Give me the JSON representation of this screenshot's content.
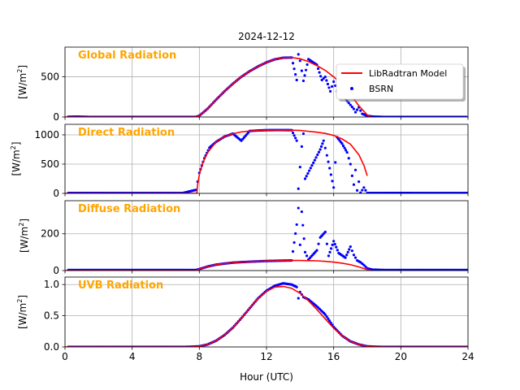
{
  "chart_data": {
    "type": "scatter",
    "title": "2024-12-12",
    "xlabel": "Hour (UTC)",
    "xlim": [
      0,
      24
    ],
    "xticks": [
      "0",
      "4",
      "8",
      "12",
      "16",
      "20",
      "24"
    ],
    "xtick_values": [
      0,
      4,
      8,
      12,
      16,
      20,
      24
    ],
    "grid": true,
    "legend": {
      "position": "top-right of first panel",
      "entries": [
        {
          "label": "LibRadtran Model",
          "color": "#ff0000",
          "marker": "line"
        },
        {
          "label": "BSRN",
          "color": "#0000ff",
          "marker": "dot"
        }
      ]
    },
    "series_colors": {
      "model": "#ff0000",
      "bsrn": "#0000ff",
      "panel_label": "#ffa500"
    },
    "panels": [
      {
        "name": "Global Radiation",
        "ylabel_main": "[W/m",
        "ylabel_sup": "2",
        "ylabel_end": "]",
        "ylim": [
          0,
          870
        ],
        "yticks": [
          0,
          500
        ],
        "ytick_labels": [
          "0",
          "500"
        ],
        "model": {
          "x": [
            0,
            7.8,
            8.0,
            8.5,
            9,
            9.5,
            10,
            10.5,
            11,
            11.5,
            12,
            12.5,
            13,
            13.5,
            14,
            14.5,
            15,
            15.5,
            16,
            16.5,
            17,
            17.5,
            18,
            18.2
          ],
          "y": [
            0,
            0,
            15,
            105,
            215,
            320,
            415,
            500,
            570,
            630,
            680,
            718,
            738,
            740,
            725,
            690,
            640,
            580,
            500,
            400,
            280,
            140,
            25,
            0
          ]
        },
        "bsrn": {
          "x": [
            0.2,
            0.8,
            1.5,
            2.5,
            3.5,
            4.5,
            5.5,
            6.5,
            7.5,
            7.8,
            8.0,
            8.5,
            9,
            9.5,
            10,
            10.5,
            11,
            11.5,
            12,
            12.5,
            13,
            13.5,
            13.8,
            13.9,
            14.0,
            14.2,
            14.5,
            15.0,
            15.3,
            15.5,
            15.8,
            16.0,
            16.1,
            16.3,
            16.5,
            16.8,
            17.0,
            17.2,
            17.3,
            17.5,
            17.7,
            18.0,
            18.3,
            19,
            20,
            21,
            22,
            23,
            23.9
          ],
          "y": [
            3,
            4,
            0,
            0,
            0,
            0,
            0,
            0,
            0,
            0,
            15,
            105,
            215,
            320,
            415,
            500,
            570,
            630,
            680,
            718,
            738,
            740,
            460,
            780,
            700,
            450,
            720,
            650,
            460,
            500,
            320,
            440,
            390,
            250,
            300,
            200,
            150,
            100,
            60,
            120,
            40,
            15,
            5,
            0,
            0,
            0,
            0,
            0,
            0
          ]
        }
      },
      {
        "name": "Direct Radiation",
        "ylabel_main": "[W/m",
        "ylabel_sup": "2",
        "ylabel_end": "]",
        "ylim": [
          0,
          1180
        ],
        "yticks": [
          0,
          500,
          1000
        ],
        "ytick_labels": [
          "0",
          "500",
          "1000"
        ],
        "model": {
          "x": [
            0,
            7.85,
            7.9,
            8.0,
            8.2,
            8.5,
            9,
            9.5,
            10,
            10.5,
            11,
            11.5,
            12,
            12.5,
            13,
            13.5,
            14,
            14.5,
            15,
            15.5,
            16,
            16.5,
            17,
            17.5,
            17.8,
            18.0
          ],
          "y": [
            0,
            0,
            150,
            320,
            520,
            700,
            880,
            970,
            1020,
            1050,
            1065,
            1075,
            1080,
            1082,
            1082,
            1080,
            1075,
            1060,
            1045,
            1025,
            990,
            930,
            840,
            660,
            480,
            300
          ]
        },
        "bsrn": {
          "x": [
            0.2,
            1,
            2,
            3,
            4,
            5,
            6,
            7,
            7.8,
            7.9,
            8.0,
            8.3,
            8.6,
            9,
            9.5,
            10,
            10.5,
            11,
            11.5,
            12,
            12.5,
            13,
            13.5,
            13.8,
            13.9,
            14.0,
            14.1,
            14.2,
            14.3,
            15.2,
            15.4,
            15.6,
            16.0,
            16.2,
            16.5,
            16.8,
            17.0,
            17.1,
            17.2,
            17.3,
            17.4,
            17.5,
            17.6,
            17.8,
            18.0,
            18.5,
            19,
            20,
            21,
            22,
            23,
            24
          ],
          "y": [
            5,
            5,
            5,
            5,
            5,
            5,
            5,
            5,
            60,
            200,
            350,
            600,
            780,
            880,
            970,
            1020,
            900,
            1065,
            1075,
            1080,
            1082,
            1082,
            1080,
            900,
            80,
            450,
            800,
            1020,
            250,
            750,
            900,
            650,
            100,
            960,
            850,
            700,
            500,
            300,
            150,
            400,
            50,
            200,
            10,
            100,
            5,
            5,
            5,
            5,
            5,
            5,
            5,
            5
          ]
        }
      },
      {
        "name": "Diffuse Radiation",
        "ylabel_main": "[W/m",
        "ylabel_sup": "2",
        "ylabel_end": "]",
        "ylim": [
          0,
          380
        ],
        "yticks": [
          0,
          200
        ],
        "ytick_labels": [
          "0",
          "200"
        ],
        "model": {
          "x": [
            0,
            7.8,
            8.0,
            8.5,
            9,
            9.5,
            10,
            10.5,
            11,
            11.5,
            12,
            12.5,
            13,
            13.5,
            14,
            14.5,
            15,
            15.5,
            16,
            16.5,
            17,
            17.5,
            18,
            18.2
          ],
          "y": [
            0,
            0,
            8,
            22,
            32,
            38,
            43,
            46,
            48,
            50,
            52,
            53,
            54,
            55,
            55,
            54,
            53,
            50,
            46,
            40,
            32,
            20,
            5,
            0
          ]
        },
        "bsrn": {
          "x": [
            0.2,
            1,
            2,
            3,
            4,
            5,
            6,
            7,
            7.8,
            8.0,
            8.5,
            9,
            9.5,
            10,
            10.5,
            11,
            11.5,
            12,
            12.5,
            13,
            13.5,
            13.8,
            13.9,
            14.0,
            14.1,
            14.3,
            14.5,
            15.0,
            15.2,
            15.5,
            15.7,
            16.0,
            16.3,
            16.7,
            17.0,
            17.2,
            17.4,
            17.6,
            17.8,
            18.0,
            18.3,
            19,
            20,
            21,
            22,
            23,
            24
          ],
          "y": [
            3,
            3,
            3,
            3,
            3,
            3,
            3,
            3,
            3,
            8,
            22,
            32,
            38,
            43,
            46,
            48,
            50,
            52,
            53,
            54,
            55,
            250,
            340,
            140,
            320,
            100,
            60,
            110,
            180,
            210,
            80,
            160,
            95,
            70,
            130,
            85,
            55,
            45,
            30,
            12,
            5,
            3,
            3,
            3,
            3,
            3,
            3
          ]
        }
      },
      {
        "name": "UVB Radiation",
        "ylabel_main": "[W/m",
        "ylabel_sup": "2",
        "ylabel_end": "]",
        "ylim": [
          0,
          1.12
        ],
        "yticks": [
          0.0,
          0.5,
          1.0
        ],
        "ytick_labels": [
          "0.0",
          "0.5",
          "1.0"
        ],
        "model": {
          "x": [
            0,
            7.5,
            8,
            8.5,
            9,
            9.5,
            10,
            10.5,
            11,
            11.5,
            12,
            12.5,
            13,
            13.5,
            14,
            14.5,
            15,
            15.5,
            16,
            16.5,
            17,
            17.5,
            18,
            18.5,
            19,
            24
          ],
          "y": [
            0,
            0,
            0.01,
            0.04,
            0.1,
            0.19,
            0.31,
            0.46,
            0.62,
            0.78,
            0.89,
            0.96,
            0.97,
            0.94,
            0.86,
            0.74,
            0.6,
            0.45,
            0.3,
            0.18,
            0.09,
            0.04,
            0.01,
            0.003,
            0,
            0
          ]
        },
        "bsrn": {
          "x": [
            0.2,
            1,
            2,
            3,
            4,
            5,
            6,
            7,
            7.5,
            8,
            8.5,
            9,
            9.5,
            10,
            10.5,
            11,
            11.5,
            12,
            12.5,
            13,
            13.5,
            13.8,
            13.9,
            14.0,
            14.2,
            14.5,
            15,
            15.5,
            16,
            16.5,
            17,
            17.5,
            18,
            18.5,
            19,
            20,
            21,
            22,
            23,
            24
          ],
          "y": [
            0,
            0,
            0,
            0,
            0,
            0,
            0,
            0,
            0.003,
            0.01,
            0.04,
            0.1,
            0.19,
            0.31,
            0.46,
            0.62,
            0.78,
            0.9,
            0.98,
            1.02,
            1.0,
            0.96,
            0.78,
            0.88,
            0.8,
            0.76,
            0.65,
            0.52,
            0.32,
            0.18,
            0.09,
            0.04,
            0.01,
            0.003,
            0,
            0,
            0,
            0,
            0,
            0
          ]
        }
      }
    ]
  }
}
